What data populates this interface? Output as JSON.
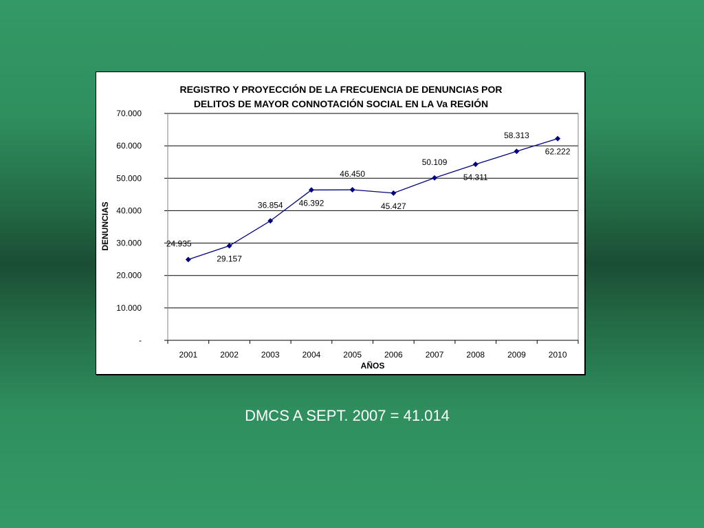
{
  "chart_data": {
    "type": "line",
    "title_lines": [
      "REGISTRO Y PROYECCIÓN DE LA FRECUENCIA DE DENUNCIAS POR",
      "DELITOS DE MAYOR CONNOTACIÓN SOCIAL EN LA Va REGIÓN"
    ],
    "xlabel": "AÑOS",
    "ylabel": "DENUNCIAS",
    "categories": [
      "2001",
      "2002",
      "2003",
      "2004",
      "2005",
      "2006",
      "2007",
      "2008",
      "2009",
      "2010"
    ],
    "series": [
      {
        "values": [
          24935,
          29157,
          36854,
          46392,
          46450,
          45427,
          50109,
          54311,
          58313,
          62222
        ],
        "color": "#000080"
      }
    ],
    "data_labels": [
      "24.935",
      "29.157",
      "36.854",
      "46.392",
      "46.450",
      "45.427",
      "50.109",
      "54.311",
      "58.313",
      "62.222"
    ],
    "label_positions": [
      "left",
      "below",
      "above",
      "below",
      "above",
      "below",
      "above",
      "below",
      "above",
      "below"
    ],
    "y_ticks": [
      0,
      10000,
      20000,
      30000,
      40000,
      50000,
      60000,
      70000
    ],
    "y_tick_labels": [
      "-",
      "10.000",
      "20.000",
      "30.000",
      "40.000",
      "50.000",
      "60.000",
      "70.000"
    ],
    "ylim": [
      0,
      70000
    ],
    "grid": true,
    "legend": "none"
  },
  "footnote": "DMCS A SEPT. 2007 = 41.014"
}
